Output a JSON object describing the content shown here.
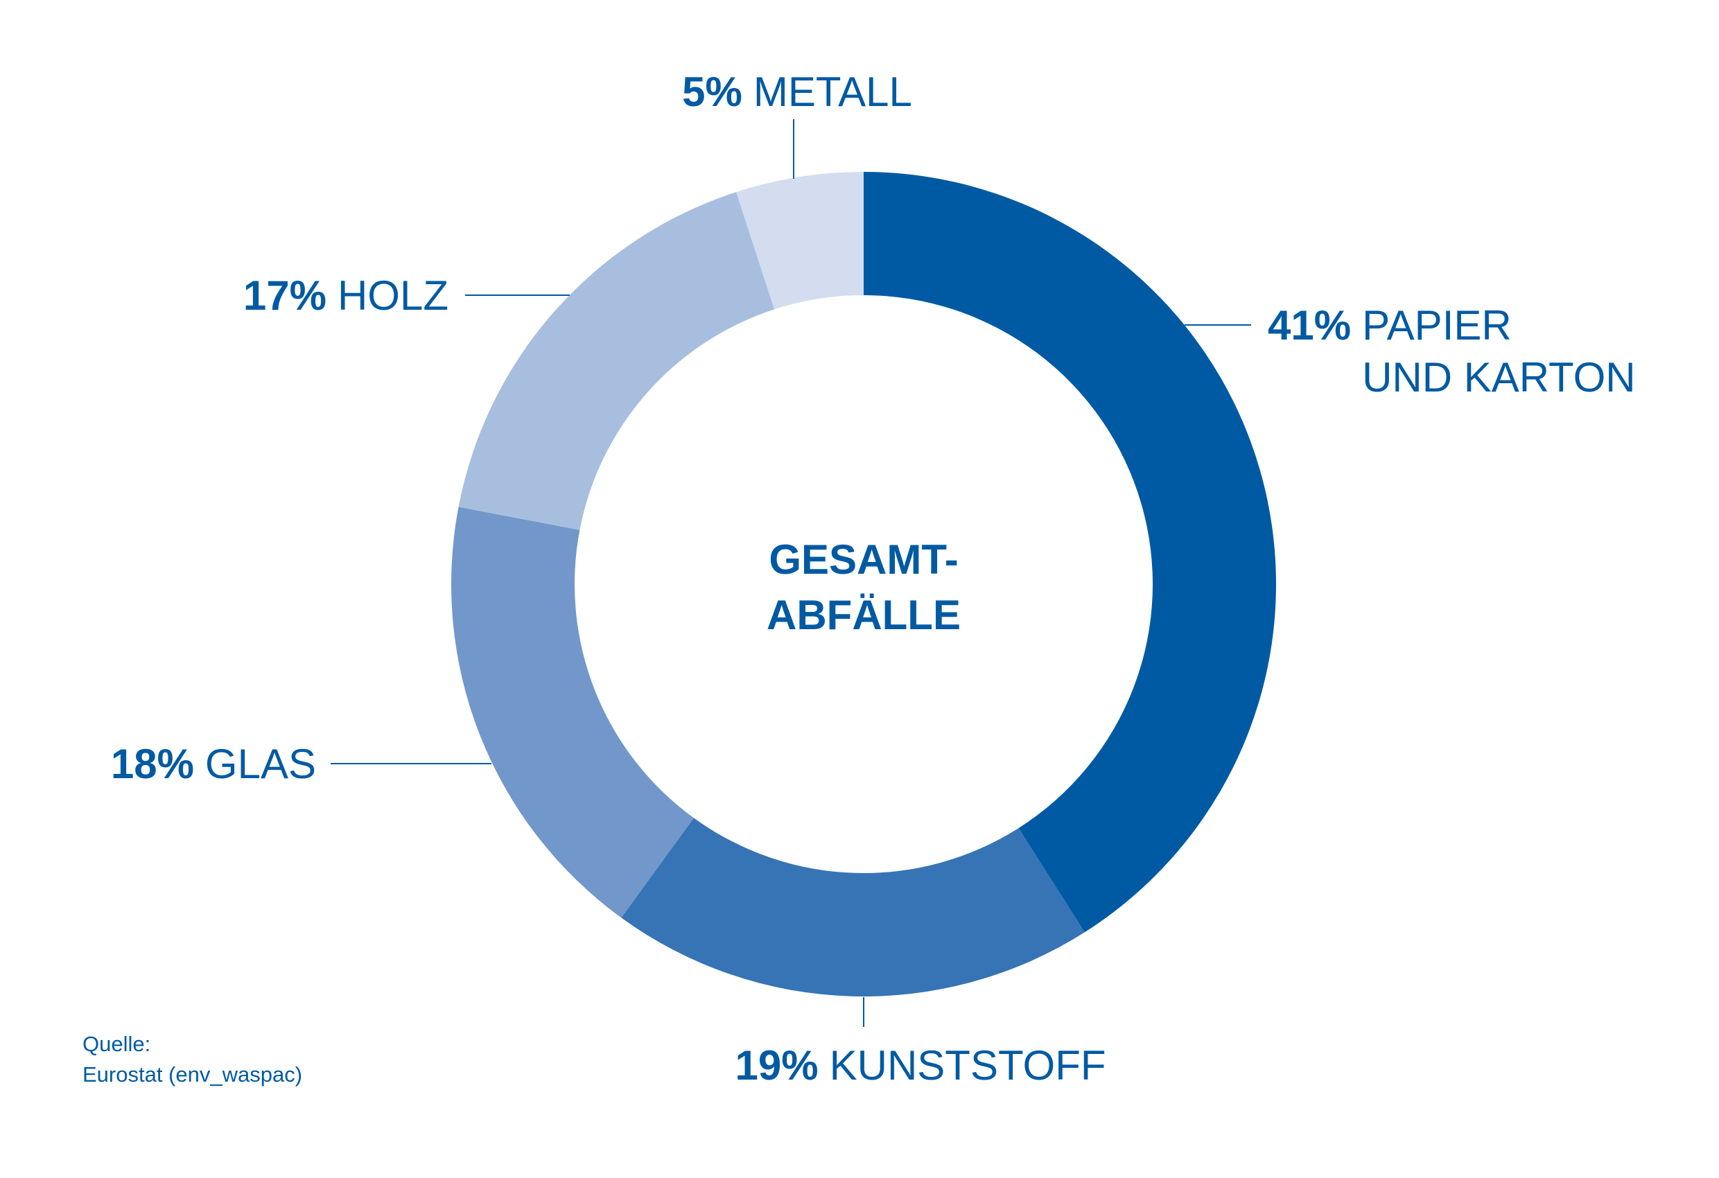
{
  "chart_data": {
    "type": "donut",
    "center_label": "GESAMT-ABFÄLLE",
    "categories": [
      "PAPIER\nUND KARTON",
      "KUNSTSTOFF",
      "GLAS",
      "HOLZ",
      "METALL"
    ],
    "values": [
      41,
      19,
      18,
      17,
      5
    ],
    "value_labels": [
      "41%",
      "19%",
      "18%",
      "17%",
      "5%"
    ],
    "colors": [
      "#005aa3",
      "#3674b5",
      "#7297cb",
      "#a7bedf",
      "#d3ddef"
    ],
    "source": [
      "Quelle:",
      "Eurostat (env_waspac)"
    ]
  }
}
